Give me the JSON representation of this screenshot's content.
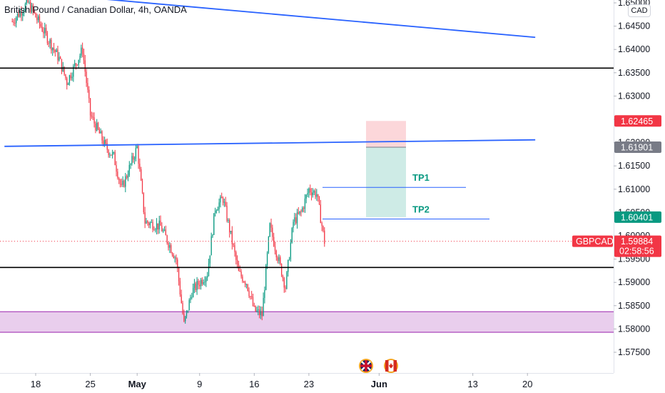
{
  "title": "British Pound / Canadian Dollar, 4h, OANDA",
  "currency": "CAD",
  "colors": {
    "up": "#089981",
    "down": "#f23645",
    "trend": "#2962ff",
    "level": "#000000",
    "zone": "#ab47bc",
    "tp": "#2962ff"
  },
  "chart_data": {
    "type": "candlestick",
    "symbol": "GBPCAD",
    "timeframe": "4h",
    "ylim": [
      1.57,
      1.652
    ],
    "y_ticks": [
      "1.65000",
      "1.64500",
      "1.64000",
      "1.63500",
      "1.63000",
      "1.62500",
      "1.62000",
      "1.61500",
      "1.61000",
      "1.60500",
      "1.60000",
      "1.59500",
      "1.59000",
      "1.58500",
      "1.58000",
      "1.57500"
    ],
    "x_ticks": [
      "18",
      "25",
      "May",
      "9",
      "16",
      "23",
      "Jun",
      "13",
      "20"
    ],
    "close_path": [
      [
        "Apr 15",
        1.646
      ],
      [
        "Apr 17",
        1.65
      ],
      [
        "Apr 19",
        1.644
      ],
      [
        "Apr 21",
        1.638
      ],
      [
        "Apr 22",
        1.633
      ],
      [
        "Apr 24",
        1.64
      ],
      [
        "Apr 25",
        1.626
      ],
      [
        "Apr 27",
        1.619
      ],
      [
        "Apr 28",
        1.617
      ],
      [
        "Apr 29",
        1.61
      ],
      [
        "May 1",
        1.619
      ],
      [
        "May 2",
        1.603
      ],
      [
        "May 4",
        1.602
      ],
      [
        "May 6",
        1.595
      ],
      [
        "May 7",
        1.581
      ],
      [
        "May 8",
        1.588
      ],
      [
        "May 10",
        1.592
      ],
      [
        "May 11",
        1.606
      ],
      [
        "May 12",
        1.608
      ],
      [
        "May 14",
        1.592
      ],
      [
        "May 15",
        1.59
      ],
      [
        "May 16",
        1.584
      ],
      [
        "May 17",
        1.583
      ],
      [
        "May 18",
        1.602
      ],
      [
        "May 20",
        1.589
      ],
      [
        "May 21",
        1.603
      ],
      [
        "May 22",
        1.605
      ],
      [
        "May 23",
        1.61
      ],
      [
        "May 24",
        1.609
      ],
      [
        "May 25",
        1.5988
      ]
    ],
    "horizontal_levels": [
      1.636,
      1.5932,
      1.5793
    ],
    "support_zone": [
      1.5793,
      1.5837
    ],
    "trendlines": [
      {
        "from": [
          "Apr 14",
          1.6527
        ],
        "to": [
          "Jun 21",
          1.6426
        ]
      },
      {
        "from": [
          "Apr 14",
          1.6192
        ],
        "to": [
          "Jun 21",
          1.6206
        ]
      }
    ],
    "position": {
      "stop": 1.62465,
      "entry": 1.61901,
      "target": 1.60401
    },
    "targets": [
      {
        "label": "TP1",
        "price": 1.6104
      },
      {
        "label": "TP2",
        "price": 1.6036
      }
    ],
    "price_tags": [
      {
        "text": "1.62465",
        "price": 1.62465,
        "color": "#f23645"
      },
      {
        "text": "1.61901",
        "price": 1.61901,
        "color": "#787b86"
      },
      {
        "text": "1.60401",
        "price": 1.60401,
        "color": "#089981"
      }
    ],
    "last_price": {
      "symbol": "GBPCAD",
      "price": "1.59884",
      "countdown": "02:58:56",
      "value": 1.59884
    },
    "event_icons": [
      "flag-gb-icon",
      "flag-ca-icon"
    ]
  }
}
